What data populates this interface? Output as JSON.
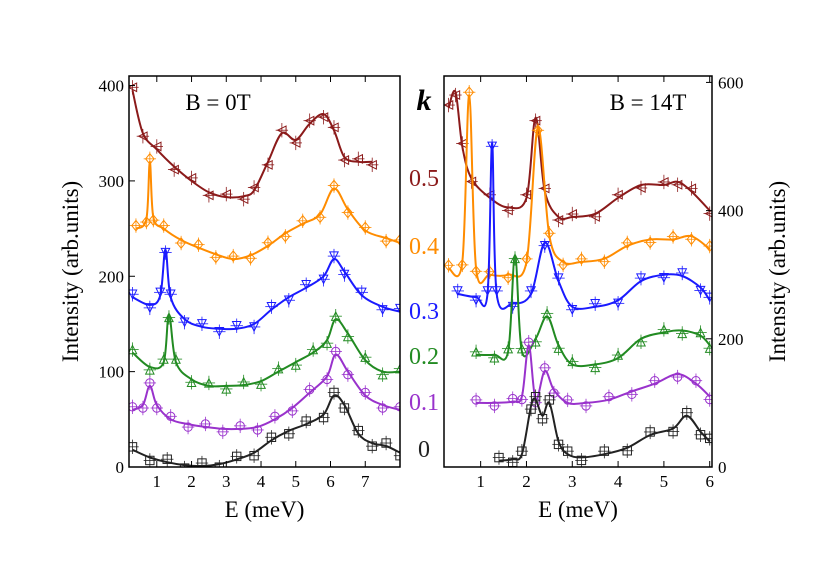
{
  "chart_data": [
    {
      "type": "line",
      "panel": "left",
      "title": "B = 0T",
      "xlabel": "E (meV)",
      "ylabel": "Intensity (arb.units)",
      "xlim": [
        0.2,
        8.0
      ],
      "ylim": [
        0,
        410
      ],
      "xticks": [
        1,
        2,
        3,
        4,
        5,
        6,
        7
      ],
      "yticks": [
        0,
        100,
        200,
        300,
        400
      ],
      "series": [
        {
          "name": "0.5",
          "color": "#8b1a1a",
          "marker": "triangle-left",
          "x": [
            0.3,
            0.6,
            1.0,
            1.5,
            2.0,
            2.5,
            3.0,
            3.5,
            3.8,
            4.2,
            4.6,
            5.0,
            5.4,
            5.8,
            6.1,
            6.4,
            6.8,
            7.2
          ],
          "y": [
            395,
            350,
            333,
            315,
            300,
            288,
            283,
            284,
            290,
            320,
            350,
            343,
            360,
            370,
            353,
            325,
            320,
            320
          ]
        },
        {
          "name": "0.4",
          "color": "#ff8c00",
          "marker": "diamond",
          "x": [
            0.4,
            0.7,
            0.8,
            0.9,
            1.2,
            1.7,
            2.2,
            2.7,
            3.2,
            3.7,
            4.2,
            4.7,
            5.2,
            5.7,
            6.1,
            6.5,
            7.0,
            7.6,
            8.0
          ],
          "y": [
            250,
            260,
            320,
            262,
            250,
            238,
            230,
            223,
            218,
            222,
            232,
            245,
            255,
            265,
            292,
            270,
            248,
            240,
            235
          ]
        },
        {
          "name": "0.3",
          "color": "#1a1aff",
          "marker": "triangle-down",
          "x": [
            0.3,
            0.8,
            1.1,
            1.25,
            1.4,
            1.8,
            2.3,
            2.8,
            3.3,
            3.8,
            4.3,
            4.8,
            5.3,
            5.8,
            6.1,
            6.4,
            6.9,
            7.5,
            8.0
          ],
          "y": [
            178,
            170,
            180,
            228,
            178,
            155,
            147,
            145,
            145,
            150,
            165,
            178,
            188,
            200,
            218,
            205,
            180,
            168,
            163
          ]
        },
        {
          "name": "0.2",
          "color": "#228b22",
          "marker": "triangle-up",
          "x": [
            0.3,
            0.8,
            1.2,
            1.35,
            1.55,
            2.0,
            2.5,
            3.0,
            3.5,
            4.0,
            4.5,
            5.0,
            5.5,
            5.9,
            6.15,
            6.5,
            7.0,
            7.5,
            8.0
          ],
          "y": [
            120,
            105,
            110,
            160,
            110,
            92,
            85,
            85,
            86,
            90,
            100,
            110,
            120,
            133,
            155,
            140,
            112,
            100,
            100
          ]
        },
        {
          "name": "0.1",
          "color": "#9932cc",
          "marker": "circle",
          "x": [
            0.3,
            0.6,
            0.8,
            1.0,
            1.4,
            1.9,
            2.4,
            2.9,
            3.4,
            3.9,
            4.4,
            4.9,
            5.4,
            5.9,
            6.15,
            6.5,
            7.0,
            7.5,
            8.0
          ],
          "y": [
            60,
            65,
            85,
            65,
            50,
            45,
            42,
            40,
            40,
            42,
            50,
            62,
            78,
            95,
            118,
            100,
            75,
            65,
            60
          ]
        },
        {
          "name": "0",
          "color": "#222222",
          "marker": "square",
          "x": [
            0.3,
            0.8,
            1.3,
            1.8,
            2.3,
            2.8,
            3.3,
            3.8,
            4.3,
            4.8,
            5.3,
            5.8,
            6.1,
            6.4,
            6.8,
            7.2,
            7.6,
            8.0
          ],
          "y": [
            18,
            10,
            5,
            2,
            1,
            3,
            8,
            15,
            28,
            38,
            45,
            55,
            75,
            65,
            35,
            25,
            22,
            15
          ]
        }
      ]
    },
    {
      "type": "line",
      "panel": "right",
      "title": "B = 14T",
      "xlabel": "E (meV)",
      "ylabel": "Intensity (arb.units)",
      "xlim": [
        0.2,
        6.05
      ],
      "ylim": [
        0,
        610
      ],
      "xticks": [
        1,
        2,
        3,
        4,
        5,
        6
      ],
      "yticks": [
        0,
        200,
        400,
        600
      ],
      "series": [
        {
          "name": "0.5",
          "color": "#8b1a1a",
          "marker": "triangle-left",
          "x": [
            0.3,
            0.45,
            0.6,
            0.8,
            1.2,
            1.6,
            2.0,
            2.2,
            2.4,
            2.7,
            3.0,
            3.5,
            4.0,
            4.5,
            5.0,
            5.3,
            5.6,
            6.0
          ],
          "y": [
            560,
            585,
            500,
            450,
            420,
            405,
            420,
            545,
            430,
            390,
            390,
            395,
            420,
            440,
            440,
            445,
            430,
            400
          ]
        },
        {
          "name": "0.4",
          "color": "#ff8c00",
          "marker": "diamond",
          "x": [
            0.3,
            0.6,
            0.75,
            0.9,
            1.2,
            1.6,
            2.0,
            2.25,
            2.5,
            2.8,
            3.2,
            3.7,
            4.2,
            4.7,
            5.2,
            5.6,
            6.0
          ],
          "y": [
            310,
            320,
            580,
            310,
            300,
            300,
            320,
            530,
            360,
            320,
            320,
            325,
            345,
            355,
            355,
            360,
            340
          ]
        },
        {
          "name": "0.3",
          "color": "#1a1aff",
          "marker": "triangle-down",
          "x": [
            0.5,
            0.9,
            1.15,
            1.25,
            1.35,
            1.7,
            2.1,
            2.4,
            2.7,
            3.0,
            3.5,
            4.0,
            4.5,
            5.0,
            5.4,
            5.8,
            6.0
          ],
          "y": [
            270,
            265,
            270,
            505,
            270,
            255,
            270,
            350,
            290,
            250,
            250,
            260,
            290,
            300,
            298,
            280,
            260
          ]
        },
        {
          "name": "0.2",
          "color": "#228b22",
          "marker": "triangle-up",
          "x": [
            0.9,
            1.3,
            1.6,
            1.75,
            1.9,
            2.2,
            2.45,
            2.7,
            3.0,
            3.5,
            4.0,
            4.5,
            5.0,
            5.4,
            5.8,
            6.0
          ],
          "y": [
            175,
            175,
            180,
            330,
            180,
            200,
            235,
            190,
            160,
            160,
            170,
            200,
            210,
            213,
            205,
            190
          ]
        },
        {
          "name": "0.1",
          "color": "#9932cc",
          "marker": "circle",
          "x": [
            0.9,
            1.3,
            1.7,
            1.9,
            2.05,
            2.2,
            2.4,
            2.6,
            2.9,
            3.3,
            3.8,
            4.3,
            4.8,
            5.3,
            5.7,
            6.0
          ],
          "y": [
            100,
            100,
            102,
            110,
            190,
            105,
            150,
            120,
            100,
            100,
            105,
            118,
            130,
            145,
            130,
            110
          ]
        },
        {
          "name": "0",
          "color": "#222222",
          "marker": "square",
          "x": [
            1.4,
            1.7,
            1.9,
            2.1,
            2.2,
            2.35,
            2.5,
            2.7,
            2.9,
            3.2,
            3.7,
            4.2,
            4.7,
            5.2,
            5.5,
            5.8,
            6.0
          ],
          "y": [
            10,
            12,
            20,
            95,
            105,
            80,
            100,
            40,
            20,
            15,
            20,
            30,
            50,
            60,
            80,
            55,
            40
          ]
        }
      ]
    }
  ],
  "k_label": "k",
  "k_values": [
    "0.5",
    "0.4",
    "0.3",
    "0.2",
    "0.1",
    "0"
  ]
}
